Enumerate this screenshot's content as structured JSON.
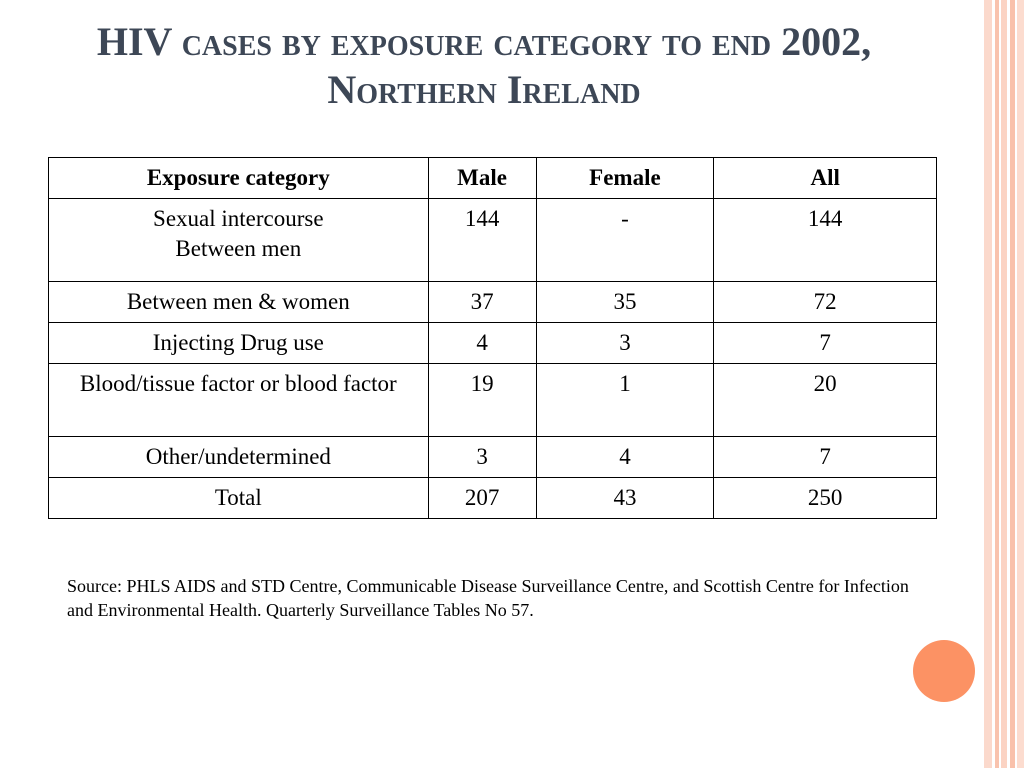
{
  "title": {
    "line1": "HIV cases by exposure category to end 2002,",
    "line2": "Northern Ireland"
  },
  "table": {
    "headers": [
      "Exposure category",
      "Male",
      "Female",
      "All"
    ],
    "rows": [
      {
        "category": "Sexual intercourse",
        "category_sub": "Between men",
        "male": "144",
        "female": "-",
        "all": "144"
      },
      {
        "category": "Between men & women",
        "male": "37",
        "female": "35",
        "all": "72"
      },
      {
        "category": "Injecting Drug use",
        "male": "4",
        "female": "3",
        "all": "7"
      },
      {
        "category": "Blood/tissue factor or blood factor",
        "male": "19",
        "female": "1",
        "all": "20"
      },
      {
        "category": "Other/undetermined",
        "male": "3",
        "female": "4",
        "all": "7"
      },
      {
        "category": "Total",
        "male": "207",
        "female": "43",
        "all": "250"
      }
    ]
  },
  "source": "Source: PHLS AIDS and STD Centre, Communicable Disease Surveillance Centre, and Scottish Centre for Infection and Environmental Health. Quarterly Surveillance Tables No 57.",
  "colors": {
    "title": "#3d4756",
    "accent_circle": "#fc9264",
    "stripes": "#f9c3ae"
  }
}
